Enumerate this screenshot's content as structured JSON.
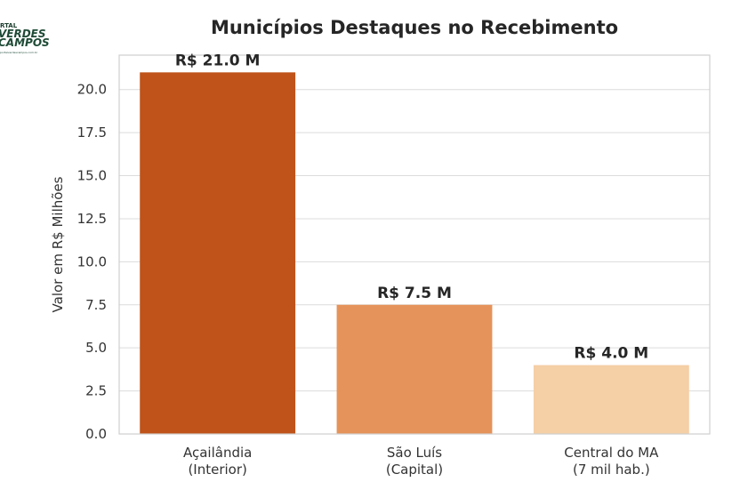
{
  "logo": {
    "line1": "RTAL",
    "line2": "VERDES",
    "line3": "CAMPOS",
    "url": "portalverdescampos.com.br"
  },
  "chart_data": {
    "type": "bar",
    "title": "Municípios Destaques no Recebimento",
    "xlabel": "",
    "ylabel": "Valor em R$ Milhões",
    "ylim": [
      0,
      22
    ],
    "yticks": [
      "0.0",
      "2.5",
      "5.0",
      "7.5",
      "10.0",
      "12.5",
      "15.0",
      "17.5",
      "20.0"
    ],
    "grid": true,
    "categories": [
      [
        "Açailândia",
        "(Interior)"
      ],
      [
        "São Luís",
        "(Capital)"
      ],
      [
        "Central do MA",
        "(7 mil hab.)"
      ]
    ],
    "values": [
      21.0,
      7.5,
      4.0
    ],
    "data_labels": [
      "R$ 21.0 M",
      "R$ 7.5 M",
      "R$ 4.0 M"
    ],
    "colors": [
      "#BF531A",
      "#E5935A",
      "#F5CFA5"
    ]
  }
}
